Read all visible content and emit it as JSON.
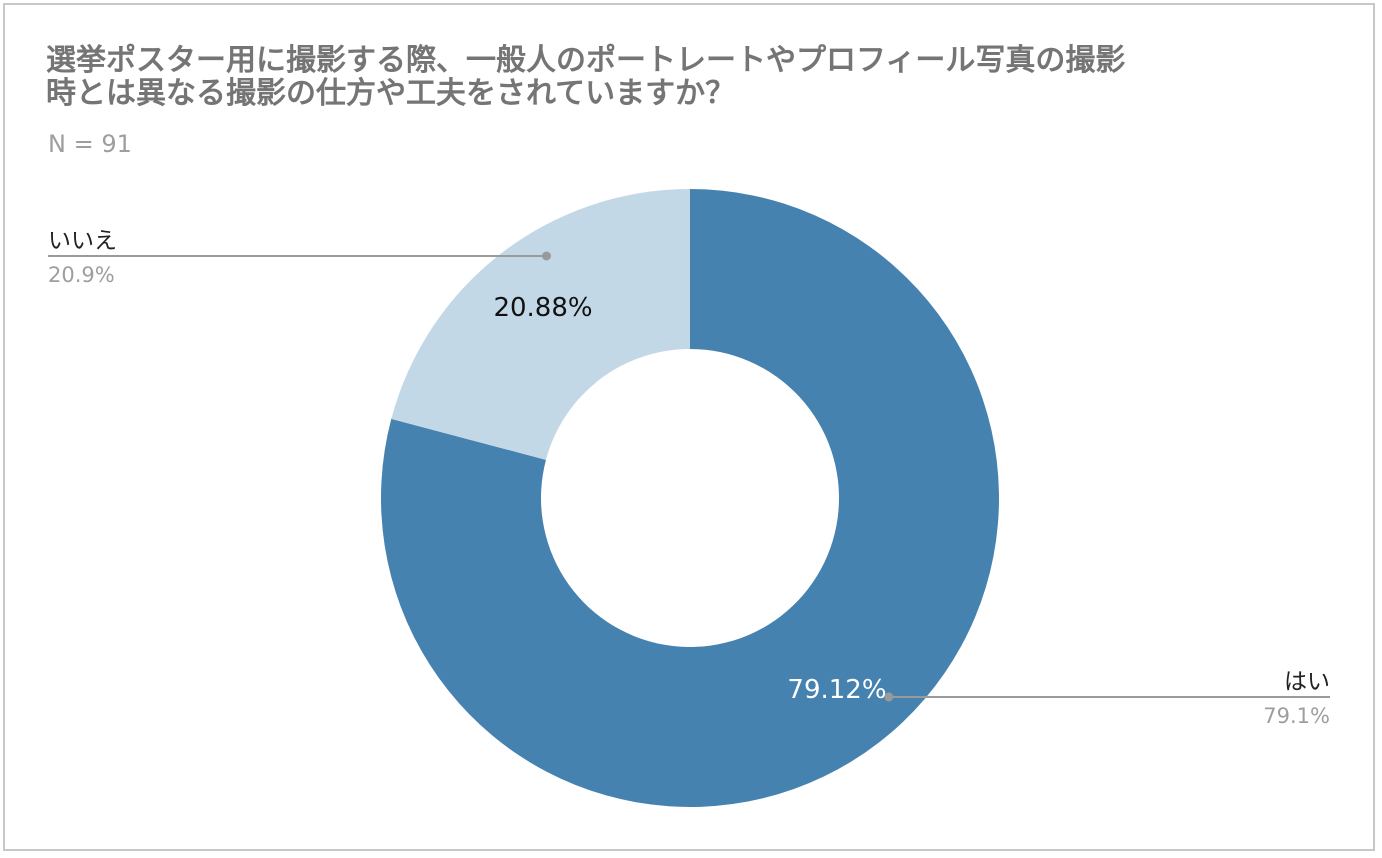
{
  "title_lines": [
    "選挙ポスター用に撮影する際、一般人のポートレートやプロフィール写真の撮影",
    "時とは異なる撮影の仕方や工夫をされていますか？"
  ],
  "subtitle": "N = 91",
  "colors": {
    "yes": "#4682b0",
    "no": "#c3d8e6",
    "leader": "#9a9a9a",
    "frame": "#c8c8c8"
  },
  "chart_data": {
    "type": "pie",
    "donut": true,
    "title": "選挙ポスター用に撮影する際、一般人のポートレートやプロフィール写真の撮影時とは異なる撮影の仕方や工夫をされていますか？",
    "subtitle": "N = 91",
    "categories": [
      "はい",
      "いいえ"
    ],
    "values": [
      79.12,
      20.88
    ],
    "slice_labels": [
      "79.12%",
      "20.88%"
    ],
    "legend_percent_labels": [
      "79.1%",
      "20.9%"
    ],
    "colors": [
      "#4682b0",
      "#c3d8e6"
    ],
    "start": "12 o'clock",
    "direction": "clockwise"
  }
}
